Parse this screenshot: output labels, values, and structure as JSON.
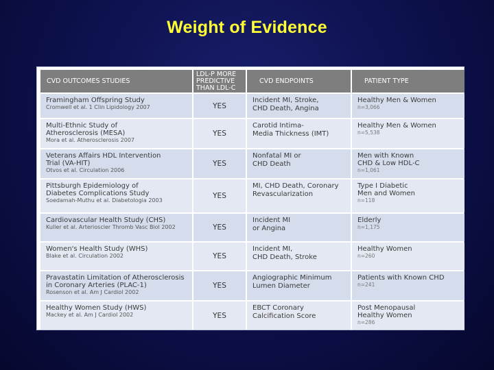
{
  "title": "Weight of Evidence",
  "headers": {
    "studies": "CVD OUTCOMES STUDIES",
    "ldlp_line1": "LDL-P MORE",
    "ldlp_line2": "PREDICTIVE",
    "ldlp_line3": "THAN LDL-C",
    "endpoints": "CVD ENDPOINTS",
    "patient": "PATIENT TYPE"
  },
  "rows": [
    {
      "study": [
        "Framingham Offspring Study"
      ],
      "cite": "Cromwell et al. 1 Clin Lipidology 2007",
      "yes": "YES",
      "endpoint": [
        "Incident MI, Stroke,",
        "CHD Death, Angina"
      ],
      "ptype": [
        "Healthy Men & Women"
      ],
      "n": "n=3,066"
    },
    {
      "study": [
        "Multi-Ethnic Study of",
        "Atherosclerosis (MESA)"
      ],
      "cite": "Mora et al. Atherosclerosis 2007",
      "yes": "YES",
      "endpoint": [
        "Carotid Intima-",
        "Media Thickness (IMT)"
      ],
      "ptype": [
        "Healthy Men & Women"
      ],
      "n": "n=5,538"
    },
    {
      "study": [
        "Veterans Affairs HDL Intervention",
        "Trial (VA-HIT)"
      ],
      "cite": "Otvos et al. Circulation 2006",
      "yes": "YES",
      "endpoint": [
        "Nonfatal MI or",
        "CHD Death"
      ],
      "ptype": [
        "Men with Known",
        "CHD & Low HDL-C"
      ],
      "n": "n=1,061"
    },
    {
      "study": [
        "Pittsburgh Epidemiology of",
        "Diabetes Complications Study"
      ],
      "cite": "Soedamah-Muthu et al. Diabetologia 2003",
      "yes": "YES",
      "endpoint": [
        "MI, CHD Death, Coronary",
        "Revascularization"
      ],
      "ptype": [
        "Type I Diabetic",
        "Men and Women"
      ],
      "n": "n=118"
    },
    {
      "study": [
        "Cardiovascular Health Study (CHS)"
      ],
      "cite": "Kuller et al. Arterioscler Thromb Vasc Biol 2002",
      "yes": "YES",
      "endpoint": [
        "Incident MI",
        "or Angina"
      ],
      "ptype": [
        "Elderly"
      ],
      "n": "n=1,175"
    },
    {
      "study": [
        "Women's Health Study (WHS)"
      ],
      "cite": "Blake et al. Circulation 2002",
      "yes": "YES",
      "endpoint": [
        "Incident MI,",
        "CHD Death, Stroke"
      ],
      "ptype": [
        "Healthy Women"
      ],
      "n": "n=260"
    },
    {
      "study": [
        "Pravastatin Limitation of Atherosclerosis",
        "in Coronary Arteries (PLAC-1)"
      ],
      "cite": "Rosenson et al. Am J Cardiol 2002",
      "yes": "YES",
      "endpoint": [
        "Angiographic Minimum",
        "Lumen Diameter"
      ],
      "ptype": [
        "Patients with Known CHD"
      ],
      "n": "n=241"
    },
    {
      "study": [
        "Healthy Women Study (HWS)"
      ],
      "cite": "Mackey et al. Am J Cardiol 2002",
      "yes": "YES",
      "endpoint": [
        "EBCT Coronary",
        "Calcification Score"
      ],
      "ptype": [
        "Post Menopausal",
        "Healthy Women"
      ],
      "n": "n=286"
    }
  ]
}
